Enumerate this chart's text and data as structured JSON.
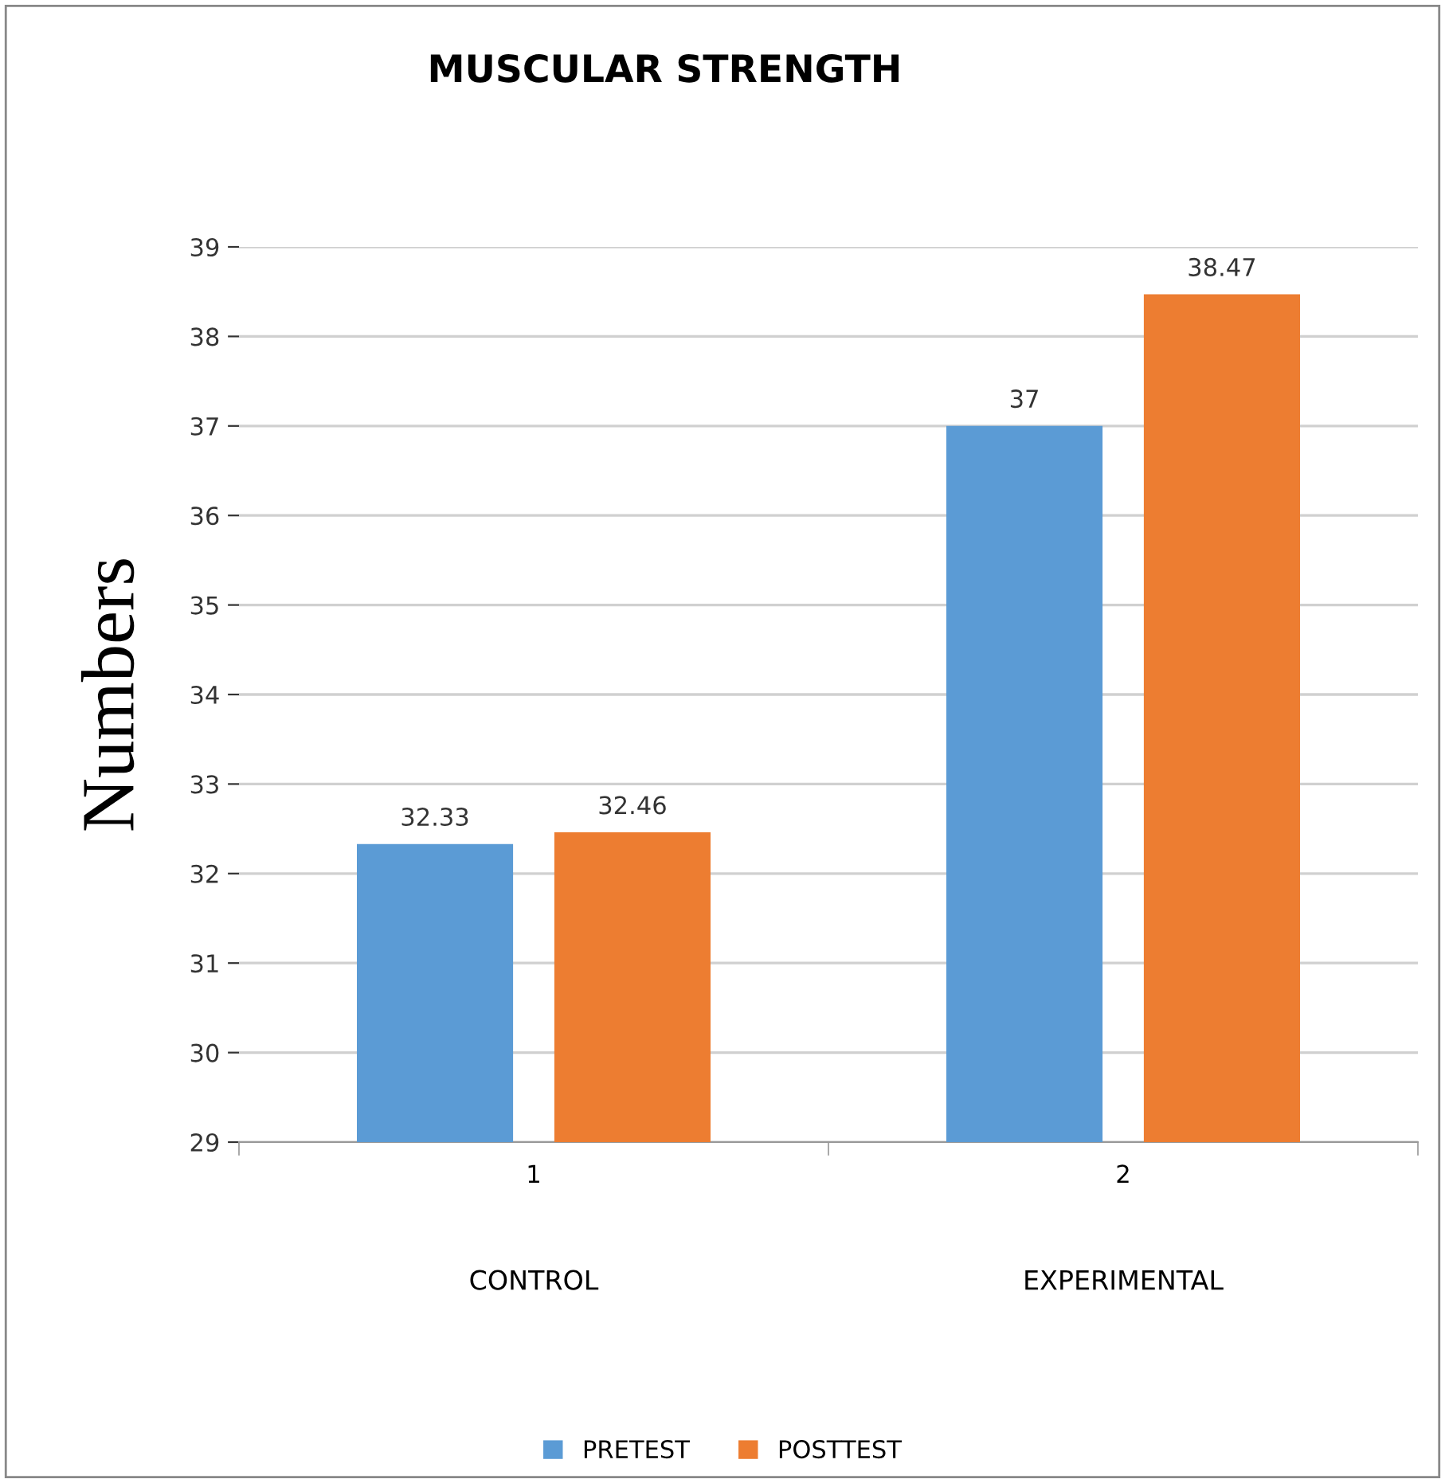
{
  "chart_data": {
    "type": "bar",
    "title": "MUSCULAR STRENGTH",
    "ylabel": "Numbers",
    "categories": [
      "1",
      "2"
    ],
    "annotations": [
      "CONTROL",
      "EXPERIMENTAL"
    ],
    "series": [
      {
        "name": "PRETEST",
        "color": "#5b9bd5",
        "values": [
          32.33,
          37
        ]
      },
      {
        "name": "POSTTEST",
        "color": "#ed7d31",
        "values": [
          32.46,
          38.47
        ]
      }
    ],
    "ylim": [
      29,
      39
    ],
    "yticks": [
      29,
      30,
      31,
      32,
      33,
      34,
      35,
      36,
      37,
      38,
      39
    ],
    "grid": "y",
    "legend": "bottom",
    "data_labels": true
  }
}
